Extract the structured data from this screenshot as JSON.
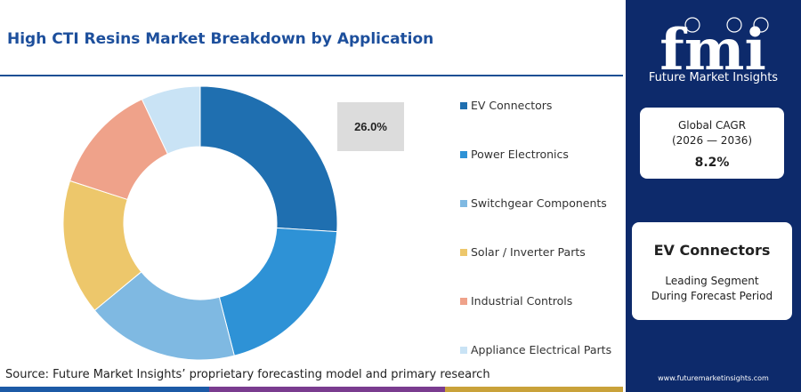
{
  "title": "High CTI Resins Market Breakdown by Application",
  "callout_value": "26.0%",
  "source": "Source: Future Market Insights’ proprietary forecasting model and primary research",
  "brand": {
    "logo_text": "fmi",
    "name": "Future Market Insights",
    "website": "www.futuremarketinsights.com"
  },
  "cagr_card": {
    "label_line1": "Global CAGR",
    "label_line2": "(2026 — 2036)",
    "value": "8.2%"
  },
  "segment_card": {
    "title": "EV Connectors",
    "subtitle_line1": "Leading Segment",
    "subtitle_line2": "During Forecast Period"
  },
  "colors": {
    "navy": "#0d2a6b",
    "title_blue": "#1d4f9c",
    "bottom_bar": [
      "#1c5aa6",
      "#7a3c8f",
      "#c9a23a"
    ]
  },
  "chart_data": {
    "type": "pie",
    "donut": true,
    "categories": [
      "EV Connectors",
      "Power Electronics",
      "Switchgear Components",
      "Solar / Inverter Parts",
      "Industrial Controls",
      "Appliance Electrical Parts"
    ],
    "values": [
      26.0,
      20.0,
      18.0,
      16.0,
      13.0,
      7.0
    ],
    "colors": [
      "#1f6fb0",
      "#2e92d6",
      "#7fb9e2",
      "#edc76b",
      "#efa28a",
      "#c9e3f5"
    ],
    "legend_position": "right"
  }
}
